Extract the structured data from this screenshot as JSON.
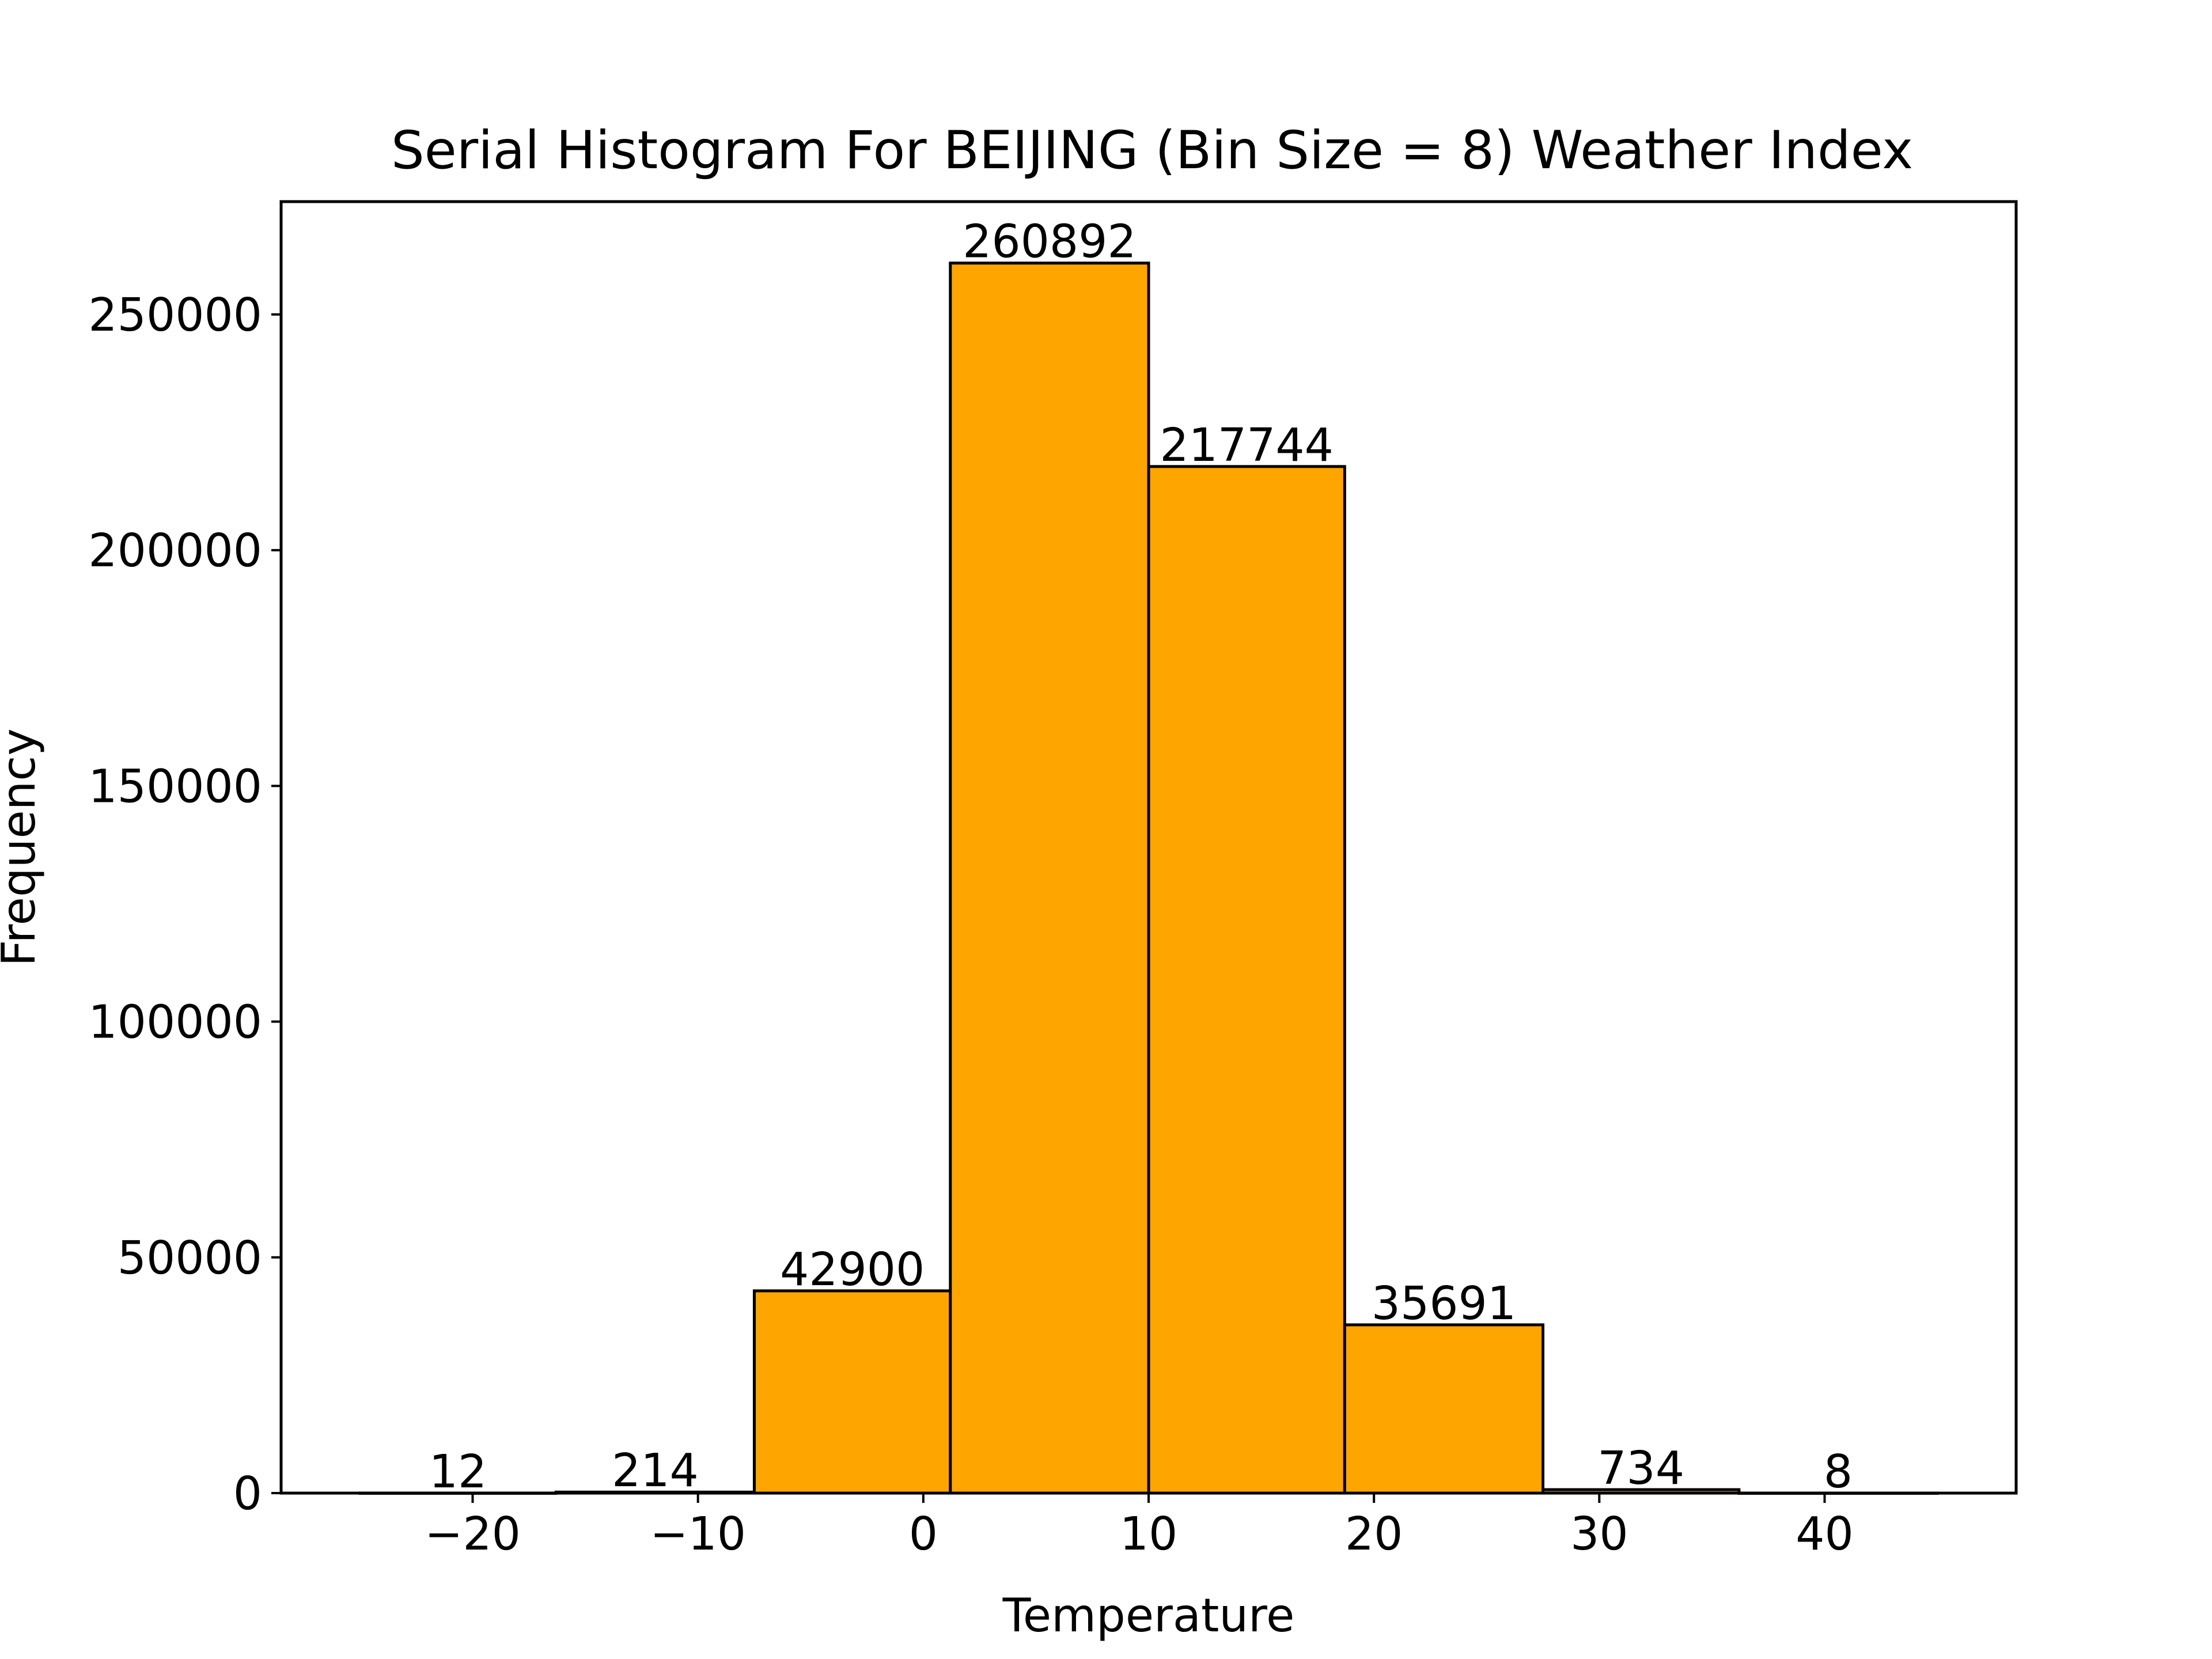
{
  "chart_data": {
    "type": "bar",
    "title": "Serial Histogram For BEIJING (Bin Size = 8) Weather Index",
    "xlabel": "Temperature",
    "ylabel": "Frequency",
    "xlim": [
      -28.5,
      48.5
    ],
    "ylim": [
      0,
      273930
    ],
    "x_ticks": [
      -20,
      -10,
      0,
      10,
      20,
      30,
      40
    ],
    "x_tick_labels": [
      "−20",
      "−10",
      "0",
      "10",
      "20",
      "30",
      "40"
    ],
    "y_ticks": [
      0,
      50000,
      100000,
      150000,
      200000,
      250000
    ],
    "y_tick_labels": [
      "0",
      "50000",
      "100000",
      "150000",
      "200000",
      "250000"
    ],
    "bar_color": "#FFA500",
    "edge_color": "#000000",
    "grid": false,
    "bins": [
      {
        "x_start": -25.0,
        "x_end": -16.3,
        "value": 12,
        "label": "12"
      },
      {
        "x_start": -16.3,
        "x_end": -7.5,
        "value": 214,
        "label": "214"
      },
      {
        "x_start": -7.5,
        "x_end": 1.2,
        "value": 42900,
        "label": "42900"
      },
      {
        "x_start": 1.2,
        "x_end": 10.0,
        "value": 260892,
        "label": "260892"
      },
      {
        "x_start": 10.0,
        "x_end": 18.7,
        "value": 217744,
        "label": "217744"
      },
      {
        "x_start": 18.7,
        "x_end": 27.5,
        "value": 35691,
        "label": "35691"
      },
      {
        "x_start": 27.5,
        "x_end": 36.2,
        "value": 734,
        "label": "734"
      },
      {
        "x_start": 36.2,
        "x_end": 45.0,
        "value": 8,
        "label": "8"
      }
    ]
  }
}
